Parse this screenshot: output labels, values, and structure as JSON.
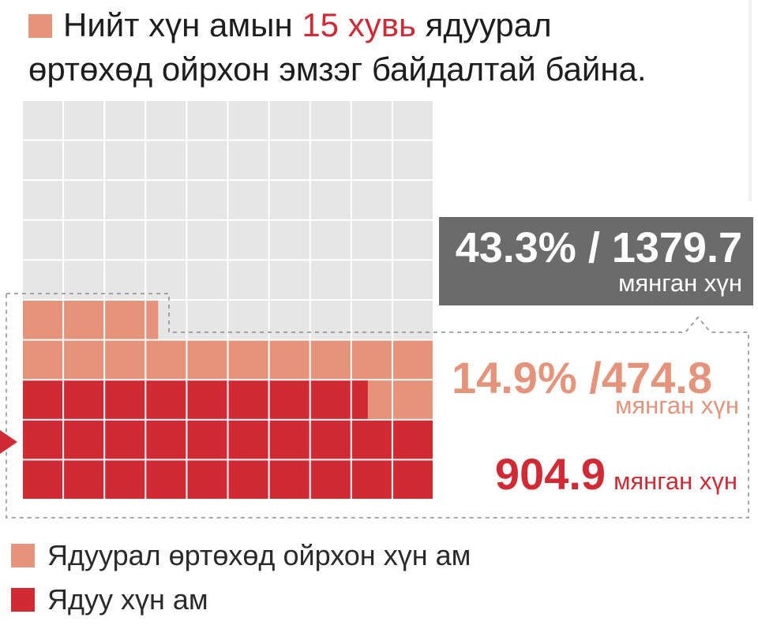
{
  "headline": {
    "text_before": "Нийт хүн амын ",
    "highlight": "15 хувь",
    "text_after": " ядуурал",
    "line2": "өртөхөд ойрхон эмзэг байдалтай байна."
  },
  "colors": {
    "empty": "#e6e6e6",
    "near_poor": "#e5937a",
    "poor": "#d22a35",
    "dark_box": "#6b6b6b",
    "headline_highlight": "#d22a35"
  },
  "chart_data": {
    "type": "waffle",
    "grid": {
      "columns": 10,
      "rows": 10,
      "cells_total": 100
    },
    "series": [
      {
        "name": "Ядуу хүн ам",
        "cells": 28.4,
        "value_thousand": 904.9
      },
      {
        "name": "Ядуурал өртөхөд ойрхон хүн ам",
        "cells": 14.9,
        "value_thousand": 474.8
      }
    ],
    "combined_percent": 43.3,
    "combined_thousand": 1379.7
  },
  "annotations": {
    "total": {
      "value": "43.3% / 1379.7",
      "unit": "мянган хүн"
    },
    "near_poor": {
      "value": "14.9% /474.8",
      "unit": "мянган хүн"
    },
    "poor": {
      "value": "904.9",
      "unit": "мянган хүн"
    }
  },
  "legend": [
    {
      "label": "Ядуурал өртөхөд ойрхон хүн ам",
      "color": "#e5937a"
    },
    {
      "label": "Ядуу хүн ам",
      "color": "#d22a35"
    }
  ]
}
